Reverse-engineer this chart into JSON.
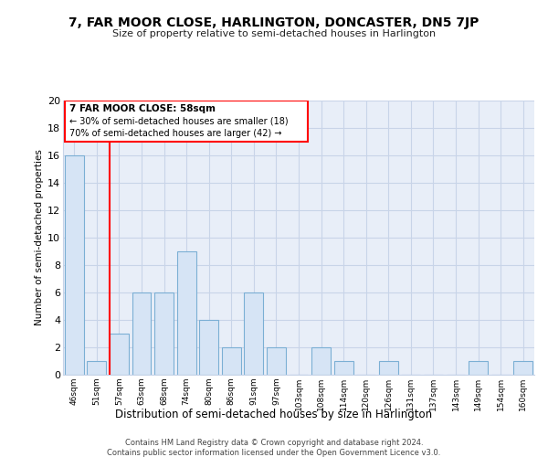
{
  "title": "7, FAR MOOR CLOSE, HARLINGTON, DONCASTER, DN5 7JP",
  "subtitle": "Size of property relative to semi-detached houses in Harlington",
  "xlabel": "Distribution of semi-detached houses by size in Harlington",
  "ylabel": "Number of semi-detached properties",
  "bins": [
    "46sqm",
    "51sqm",
    "57sqm",
    "63sqm",
    "68sqm",
    "74sqm",
    "80sqm",
    "86sqm",
    "91sqm",
    "97sqm",
    "103sqm",
    "108sqm",
    "114sqm",
    "120sqm",
    "126sqm",
    "131sqm",
    "137sqm",
    "143sqm",
    "149sqm",
    "154sqm",
    "160sqm"
  ],
  "values": [
    16,
    1,
    3,
    6,
    6,
    9,
    4,
    2,
    6,
    2,
    0,
    2,
    1,
    0,
    1,
    0,
    0,
    0,
    1,
    0,
    1
  ],
  "bar_color": "#d6e4f5",
  "bar_edge_color": "#7bafd4",
  "redline_index": 2,
  "ylim": [
    0,
    20
  ],
  "yticks": [
    0,
    2,
    4,
    6,
    8,
    10,
    12,
    14,
    16,
    18,
    20
  ],
  "annotation_title": "7 FAR MOOR CLOSE: 58sqm",
  "annotation_line1": "← 30% of semi-detached houses are smaller (18)",
  "annotation_line2": "70% of semi-detached houses are larger (42) →",
  "footer1": "Contains HM Land Registry data © Crown copyright and database right 2024.",
  "footer2": "Contains public sector information licensed under the Open Government Licence v3.0.",
  "bg_color": "#ffffff",
  "grid_color": "#c8d4e8",
  "plot_bg_color": "#e8eef8"
}
